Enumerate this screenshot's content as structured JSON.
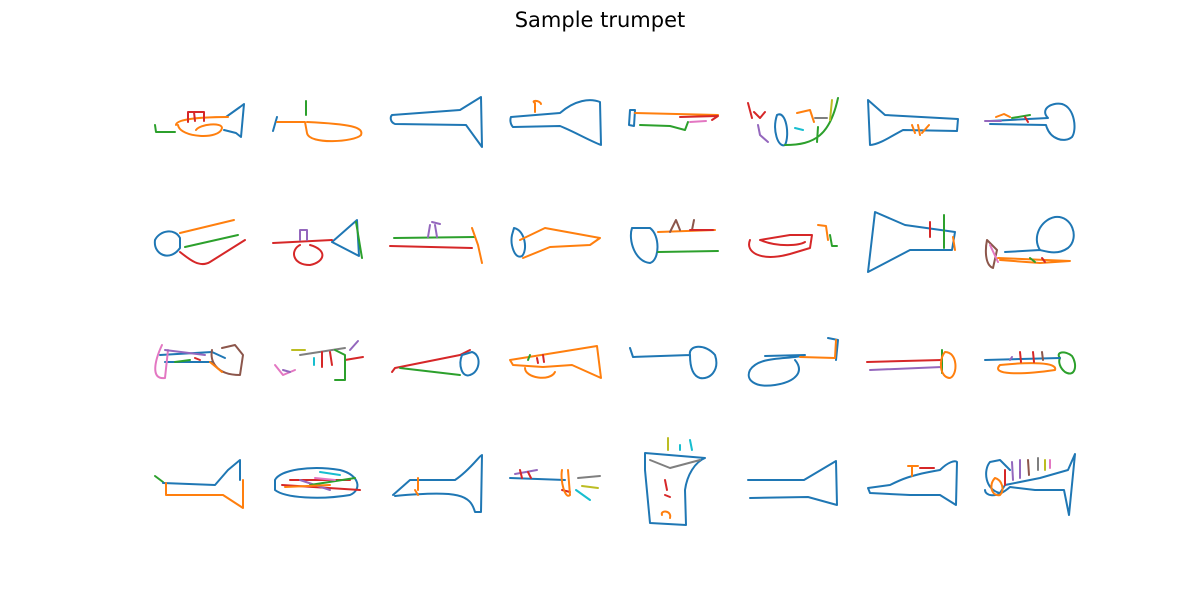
{
  "title": "Sample trumpet"
}
